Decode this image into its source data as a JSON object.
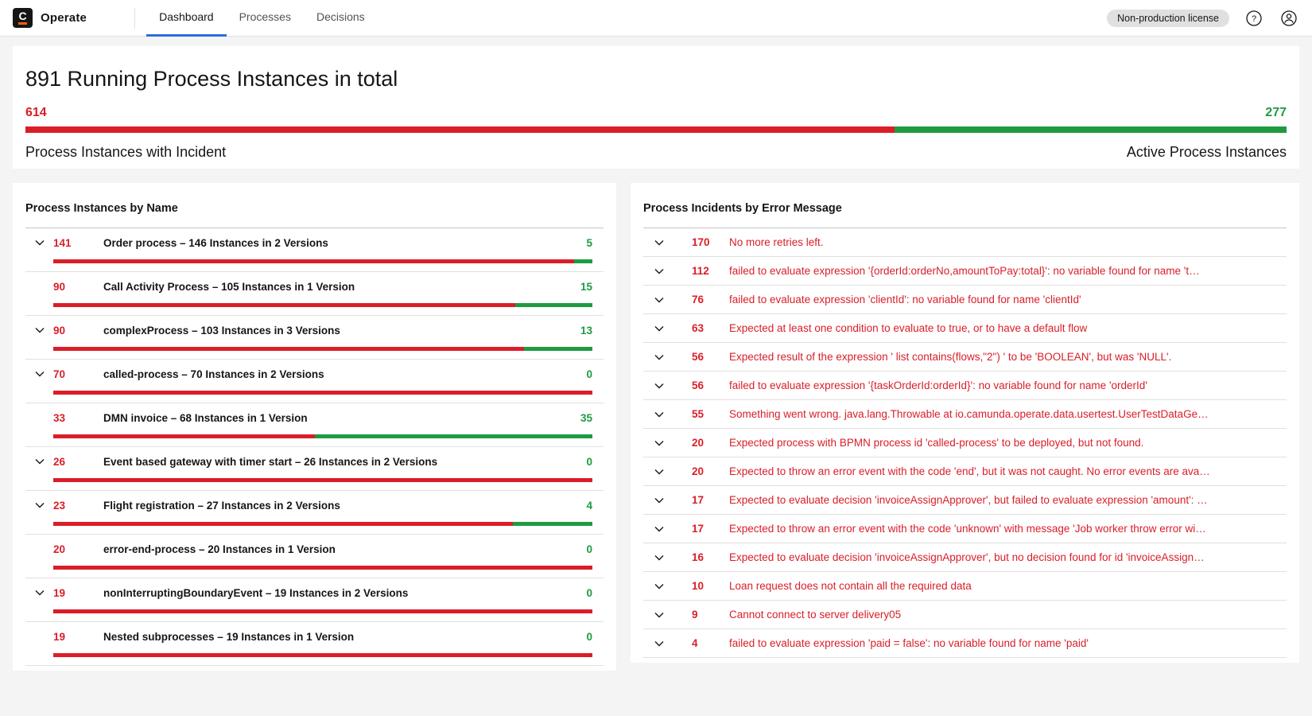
{
  "colors": {
    "red": "#da1e28",
    "green": "#1e9b41",
    "accent_blue": "#2b6de2",
    "brand_orange": "#fc5d0d"
  },
  "header": {
    "logo_letter": "C",
    "brand": "Operate",
    "tabs": [
      {
        "label": "Dashboard",
        "active": true
      },
      {
        "label": "Processes",
        "active": false
      },
      {
        "label": "Decisions",
        "active": false
      }
    ],
    "license_badge": "Non-production license"
  },
  "overview": {
    "title": "891 Running Process Instances in total",
    "total": 891,
    "incidents": 614,
    "active": 277,
    "incident_count_label": "614",
    "active_count_label": "277",
    "incident_label": "Process Instances with Incident",
    "active_label": "Active Process Instances"
  },
  "instances_panel": {
    "title": "Process Instances by Name",
    "rows": [
      {
        "expandable": true,
        "incidents": 141,
        "active": 5,
        "total": 146,
        "label": "Order process – 146 Instances in 2 Versions"
      },
      {
        "expandable": false,
        "incidents": 90,
        "active": 15,
        "total": 105,
        "label": "Call Activity Process – 105 Instances in 1 Version"
      },
      {
        "expandable": true,
        "incidents": 90,
        "active": 13,
        "total": 103,
        "label": "complexProcess – 103 Instances in 3 Versions"
      },
      {
        "expandable": true,
        "incidents": 70,
        "active": 0,
        "total": 70,
        "label": "called-process – 70 Instances in 2 Versions"
      },
      {
        "expandable": false,
        "incidents": 33,
        "active": 35,
        "total": 68,
        "label": "DMN invoice – 68 Instances in 1 Version"
      },
      {
        "expandable": true,
        "incidents": 26,
        "active": 0,
        "total": 26,
        "label": "Event based gateway with timer start – 26 Instances in 2 Versions"
      },
      {
        "expandable": true,
        "incidents": 23,
        "active": 4,
        "total": 27,
        "label": "Flight registration – 27 Instances in 2 Versions"
      },
      {
        "expandable": false,
        "incidents": 20,
        "active": 0,
        "total": 20,
        "label": "error-end-process – 20 Instances in 1 Version"
      },
      {
        "expandable": true,
        "incidents": 19,
        "active": 0,
        "total": 19,
        "label": "nonInterruptingBoundaryEvent – 19 Instances in 2 Versions"
      },
      {
        "expandable": false,
        "incidents": 19,
        "active": 0,
        "total": 19,
        "label": "Nested subprocesses – 19 Instances in 1 Version"
      }
    ]
  },
  "incidents_panel": {
    "title": "Process Incidents by Error Message",
    "rows": [
      {
        "count": 170,
        "message": "No more retries left."
      },
      {
        "count": 112,
        "message": "failed to evaluate expression '{orderId:orderNo,amountToPay:total}': no variable found for name 't…"
      },
      {
        "count": 76,
        "message": "failed to evaluate expression 'clientId': no variable found for name 'clientId'"
      },
      {
        "count": 63,
        "message": "Expected at least one condition to evaluate to true, or to have a default flow"
      },
      {
        "count": 56,
        "message": "Expected result of the expression ' list contains(flows,\"2\") ' to be 'BOOLEAN', but was 'NULL'."
      },
      {
        "count": 56,
        "message": "failed to evaluate expression '{taskOrderId:orderId}': no variable found for name 'orderId'"
      },
      {
        "count": 55,
        "message": "Something went wrong. java.lang.Throwable at io.camunda.operate.data.usertest.UserTestDataGe…"
      },
      {
        "count": 20,
        "message": "Expected process with BPMN process id 'called-process' to be deployed, but not found."
      },
      {
        "count": 20,
        "message": "Expected to throw an error event with the code 'end', but it was not caught. No error events are ava…"
      },
      {
        "count": 17,
        "message": "Expected to evaluate decision 'invoiceAssignApprover', but failed to evaluate expression 'amount': …"
      },
      {
        "count": 17,
        "message": "Expected to throw an error event with the code 'unknown' with message 'Job worker throw error wi…"
      },
      {
        "count": 16,
        "message": "Expected to evaluate decision 'invoiceAssignApprover', but no decision found for id 'invoiceAssign…"
      },
      {
        "count": 10,
        "message": "Loan request does not contain all the required data"
      },
      {
        "count": 9,
        "message": "Cannot connect to server delivery05"
      },
      {
        "count": 4,
        "message": "failed to evaluate expression 'paid = false': no variable found for name 'paid'"
      }
    ]
  }
}
